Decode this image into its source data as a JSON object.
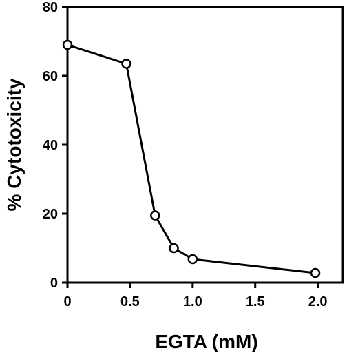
{
  "chart_data": {
    "type": "line",
    "title": "",
    "xlabel": "EGTA (mM)",
    "ylabel": "% Cytotoxicity",
    "xlim": [
      0,
      2.2
    ],
    "ylim": [
      0,
      80
    ],
    "xticks": [
      0,
      0.5,
      1.0,
      1.5,
      2.0
    ],
    "xtick_labels": [
      "0",
      "0.5",
      "1.0",
      "1.5",
      "2.0"
    ],
    "yticks": [
      0,
      20,
      40,
      60,
      80
    ],
    "ytick_labels": [
      "0",
      "20",
      "40",
      "60",
      "80"
    ],
    "grid": false,
    "series": [
      {
        "x": [
          0,
          0.47,
          0.7,
          0.85,
          1.0,
          1.98
        ],
        "y": [
          69,
          63.5,
          19.5,
          10,
          6.8,
          2.8
        ],
        "marker": "open-circle",
        "color": "#000000"
      }
    ]
  }
}
